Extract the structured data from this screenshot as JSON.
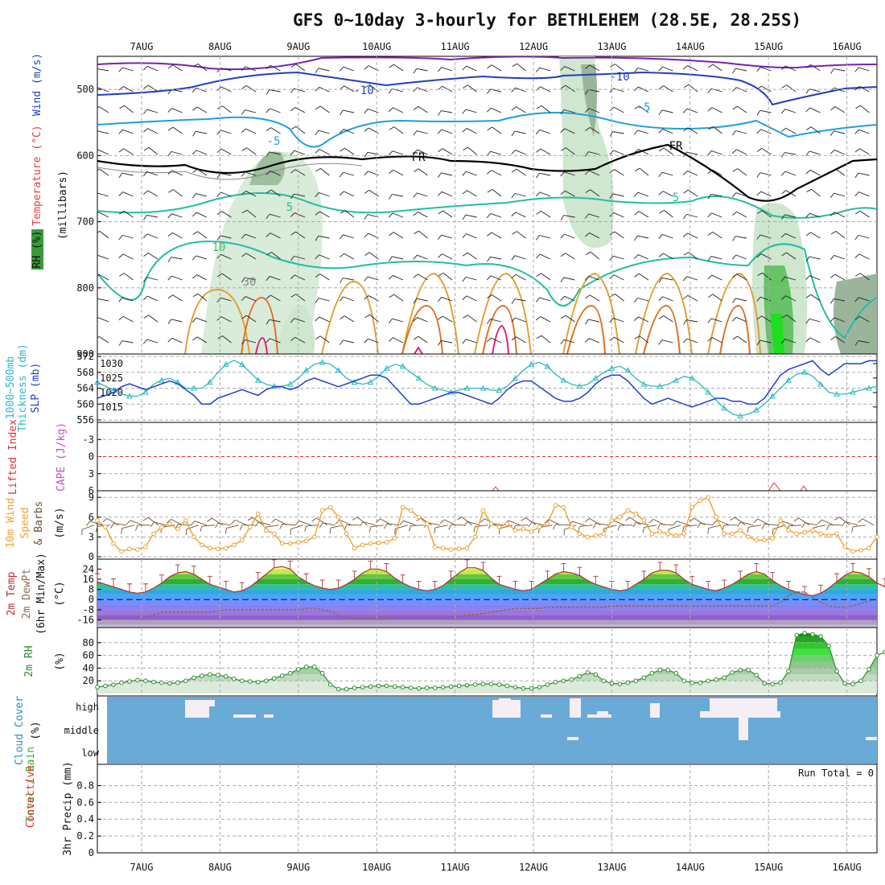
{
  "title": "GFS 0~10day 3-hourly for BETHLEHEM (28.5E, 28.25S)",
  "date_labels": [
    "7AUG",
    "8AUG",
    "9AUG",
    "10AUG",
    "11AUG",
    "12AUG",
    "13AUG",
    "14AUG",
    "15AUG",
    "16AUG"
  ],
  "chart_data": [
    {
      "type": "heatmap",
      "panel": "upper-air",
      "ylabels": [
        "Temperature (°C)",
        "Wind (m/s)",
        "RH (%)",
        "(millibars)"
      ],
      "yticks": [
        500,
        600,
        700,
        800,
        900
      ],
      "ylim": [
        900,
        450
      ],
      "contour_labels": [
        "-10",
        "-10",
        "-5",
        "-5",
        "5",
        "5",
        "10",
        "FR",
        "FR",
        "30"
      ],
      "rh_shading_levels": [
        70,
        80,
        90
      ],
      "colors": {
        "cold": "#7a1fb5",
        "minus10": "#1f3fbf",
        "minus5": "#1e9fdf",
        "plus5": "#1fbfa0",
        "plus10": "#3fbf60",
        "plus15": "#e0a030",
        "plus20": "#e07020",
        "plus25": "#e0207f",
        "freezing": "#000000",
        "rh_shade": "#cfe6cf"
      }
    },
    {
      "type": "line",
      "panel": "slp-thickness",
      "ylabels": [
        "Thickness (dm)",
        "1000~500mb",
        "SLP (mb)"
      ],
      "left_ticks": [
        556,
        560,
        564,
        568,
        572
      ],
      "right_ticks": [
        1015,
        1020,
        1025,
        1030
      ],
      "series": [
        {
          "name": "SLP (mb)",
          "color": "#1f3fcf",
          "values": [
            1018,
            1019,
            1020,
            1022,
            1023,
            1022,
            1021,
            1022,
            1023,
            1024,
            1023,
            1021,
            1019,
            1016,
            1016,
            1018,
            1019,
            1020,
            1021,
            1020,
            1019,
            1021,
            1022,
            1022,
            1021,
            1022,
            1024,
            1025,
            1024,
            1023,
            1022,
            1023,
            1024,
            1025,
            1026,
            1026,
            1025,
            1022,
            1019,
            1016,
            1016,
            1017,
            1018,
            1019,
            1020,
            1020,
            1019,
            1018,
            1017,
            1016,
            1018,
            1021,
            1023,
            1024,
            1024,
            1022,
            1020,
            1018,
            1017,
            1017,
            1018,
            1020,
            1023,
            1025,
            1026,
            1026,
            1024,
            1021,
            1018,
            1016,
            1017,
            1018,
            1017,
            1016,
            1015,
            1016,
            1017,
            1018,
            1018,
            1017,
            1017,
            1016,
            1016,
            1018,
            1022,
            1026,
            1028,
            1029,
            1030,
            1031,
            1028,
            1026,
            1028,
            1030,
            1030,
            1030,
            1031,
            1031
          ]
        },
        {
          "name": "Thickness (dm)",
          "color": "#2fb8c0",
          "values": [
            565.5,
            564.5,
            563.5,
            562.5,
            562,
            562,
            563,
            565,
            566,
            566.5,
            565.5,
            564,
            564,
            564,
            565.5,
            568,
            570,
            571,
            570,
            568,
            566,
            565,
            564.5,
            564.5,
            565,
            566.5,
            568.5,
            570,
            570.5,
            570,
            568.5,
            566.5,
            565.5,
            565,
            565.5,
            567,
            569,
            570,
            569.5,
            568,
            566.5,
            565,
            564,
            563.5,
            563,
            563.5,
            564,
            564,
            564,
            563.5,
            563.5,
            564.5,
            566.5,
            568.5,
            570,
            570.5,
            569.5,
            567.5,
            566,
            565,
            564.5,
            565,
            566.5,
            568,
            569,
            569.5,
            568.5,
            566.5,
            565,
            564.5,
            564.5,
            565,
            566,
            567,
            566.5,
            565,
            563,
            561,
            559,
            557.5,
            557,
            557.5,
            558.5,
            560,
            562,
            564,
            566,
            567.5,
            568,
            567,
            565,
            563,
            562.5,
            562.5,
            563,
            563.5,
            564,
            564.5
          ]
        }
      ]
    },
    {
      "type": "line",
      "panel": "stability",
      "ylabels": [
        "CAPE (J/kg)",
        "Lifted Index"
      ],
      "yticks": [
        -3,
        0,
        3,
        6
      ],
      "ylim": [
        -6,
        6
      ],
      "series": [
        {
          "name": "Lifted Index",
          "color": "#e03030",
          "values": []
        },
        {
          "name": "CAPE (J/kg)",
          "color": "#c050c0",
          "values": []
        }
      ]
    },
    {
      "type": "line",
      "panel": "wind10m",
      "ylabels": [
        "10m Wind",
        "Speed",
        "& Barbs",
        "(m/s)"
      ],
      "yticks": [
        0,
        3,
        6,
        9
      ],
      "ylim": [
        0,
        10
      ],
      "series": [
        {
          "name": "Speed",
          "color": "#f0a030",
          "values": [
            5.5,
            4.5,
            2,
            0.8,
            1.2,
            1.1,
            1.5,
            3.5,
            4.5,
            5,
            4.2,
            5.5,
            3,
            1.8,
            1.3,
            1.2,
            1.3,
            1.8,
            2.5,
            4.5,
            6.5,
            4,
            3.5,
            2,
            2,
            2.2,
            2.4,
            3,
            7,
            7.5,
            6,
            3.5,
            1.3,
            1.8,
            2,
            2.1,
            2.2,
            2.8,
            7.5,
            7,
            6,
            5,
            1.5,
            1.3,
            1.1,
            1.2,
            1.3,
            3,
            7,
            5,
            4.5,
            5,
            4,
            4.2,
            3.8,
            4.5,
            5,
            7.8,
            7.5,
            4.5,
            3.5,
            3,
            3.2,
            3.5,
            5.5,
            6,
            7,
            6.5,
            5.5,
            3.5,
            3.8,
            3.5,
            3.2,
            3.5,
            7.5,
            8.5,
            9,
            6,
            3.5,
            3.5,
            4,
            3,
            2.5,
            2.5,
            2.8,
            5.5,
            4,
            3.5,
            3.7,
            4,
            3.5,
            3.2,
            3.5,
            1.5,
            0.8,
            1,
            1.3,
            3
          ]
        }
      ]
    },
    {
      "type": "line",
      "panel": "temperature",
      "ylabels": [
        "2m Temp",
        "2m DewPt",
        "(6hr Min/Max)",
        "(°C)"
      ],
      "yticks": [
        -16,
        -8,
        0,
        8,
        16,
        24
      ],
      "ylim": [
        -22,
        28
      ],
      "series": [
        {
          "name": "2m Temp",
          "color": "#b03030",
          "values": [
            14,
            12,
            10,
            8,
            6,
            5,
            6,
            9,
            13,
            18,
            21,
            22,
            20,
            16,
            12,
            10,
            8,
            6,
            7,
            10,
            15,
            20,
            25,
            26,
            24,
            18,
            14,
            11,
            9,
            8,
            9,
            12,
            16,
            21,
            24,
            24,
            22,
            17,
            13,
            10,
            8,
            7,
            8,
            11,
            16,
            21,
            25,
            25,
            23,
            17,
            12,
            10,
            8,
            7,
            8,
            12,
            16,
            20,
            22,
            21,
            19,
            15,
            12,
            10,
            8,
            7,
            8,
            12,
            16,
            21,
            23,
            23,
            21,
            16,
            12,
            10,
            8,
            7,
            9,
            12,
            16,
            20,
            22,
            20,
            15,
            11,
            8,
            6,
            4,
            3,
            5,
            9,
            14,
            19,
            22,
            21,
            18,
            13,
            10,
            8,
            7,
            8
          ]
        },
        {
          "name": "2m DewPt",
          "color": "#8a6a50",
          "values": [
            -14,
            -14,
            -14,
            -14,
            -14,
            -14,
            -14,
            -12,
            -10,
            -10,
            -10,
            -10,
            -10,
            -10,
            -10,
            -9,
            -8,
            -8,
            -8,
            -8,
            -8,
            -8,
            -8,
            -8,
            -8,
            -8,
            -7,
            -7,
            -8,
            -9,
            -12,
            -15,
            -15,
            -15,
            -15,
            -15,
            -15,
            -14,
            -14,
            -14,
            -14,
            -14,
            -14,
            -14,
            -14,
            -13,
            -12,
            -12,
            -11,
            -10,
            -9,
            -8,
            -7,
            -7,
            -7,
            -7,
            -6,
            -6,
            -6,
            -6,
            -6,
            -6,
            -6,
            -6,
            -5,
            -5,
            -5,
            -5,
            -5,
            -5,
            -5,
            -5,
            -5,
            -5,
            -5,
            -5,
            -5,
            -5,
            -5,
            -5,
            -5,
            -5,
            -5,
            -5,
            -5,
            -2,
            3,
            6,
            6,
            2,
            -2,
            -5,
            -6,
            -6,
            -5,
            -3,
            -1,
            0
          ]
        }
      ]
    },
    {
      "type": "area",
      "panel": "rh2m",
      "ylabels": [
        "2m RH",
        "(%)"
      ],
      "yticks": [
        20,
        40,
        60,
        80
      ],
      "ylim": [
        0,
        100
      ],
      "series": [
        {
          "name": "2m RH",
          "color": "#2e8b2e",
          "values": [
            10,
            12,
            14,
            17,
            19,
            21,
            20,
            18,
            17,
            16,
            17,
            20,
            25,
            28,
            30,
            29,
            27,
            23,
            20,
            19,
            18,
            20,
            24,
            28,
            32,
            38,
            42,
            42,
            32,
            14,
            7,
            7,
            9,
            10,
            11,
            12,
            12,
            11,
            10,
            9,
            8,
            9,
            9,
            10,
            11,
            12,
            13,
            14,
            15,
            15,
            14,
            12,
            10,
            8,
            8,
            10,
            14,
            18,
            20,
            22,
            27,
            33,
            30,
            20,
            16,
            15,
            17,
            20,
            25,
            32,
            37,
            37,
            32,
            20,
            17,
            17,
            20,
            22,
            25,
            33,
            37,
            37,
            29,
            16,
            15,
            17,
            35,
            92,
            95,
            93,
            90,
            75,
            35,
            16,
            15,
            20,
            38,
            60,
            65,
            55
          ]
        }
      ]
    },
    {
      "type": "heatmap",
      "panel": "cloud-cover",
      "ylabels": [
        "Cloud Cover",
        "(%)"
      ],
      "ytick_labels": [
        "high",
        "middle",
        "low"
      ],
      "colors": {
        "clear": "#6aaad6",
        "cloud": "#f5eef5"
      }
    },
    {
      "type": "bar",
      "panel": "precip",
      "ylabels": [
        "3hr Precip (mm)",
        "Total / Rain",
        "Convective"
      ],
      "yticks": [
        0,
        0.2,
        0.4,
        0.6,
        0.8
      ],
      "ylim": [
        0,
        1
      ],
      "annotation": "Run Total = 0",
      "series": [
        {
          "name": "Total / Rain",
          "color": "#2eb82e",
          "values": []
        },
        {
          "name": "Convective",
          "color": "#e03030",
          "values": []
        }
      ]
    }
  ]
}
